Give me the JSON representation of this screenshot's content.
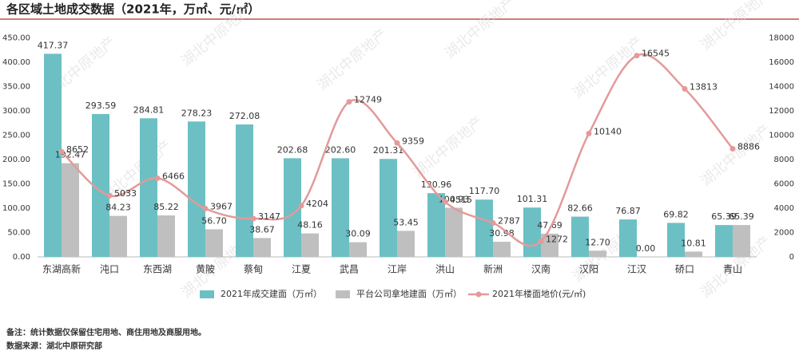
{
  "chart_data": {
    "type": "bar-line",
    "title": "各区域土地成交数据（2021年，万㎡、元/㎡）",
    "watermark": "湖北中原地产",
    "categories": [
      "东湖高新",
      "沌口",
      "东西湖",
      "黄陂",
      "蔡甸",
      "江夏",
      "武昌",
      "江岸",
      "洪山",
      "新洲",
      "汉南",
      "汉阳",
      "江汉",
      "硚口",
      "青山"
    ],
    "series": [
      {
        "name": "2021年成交建面（万㎡）",
        "color": "#6cc0c4",
        "type": "bar",
        "values": [
          417.37,
          293.59,
          284.81,
          278.23,
          272.08,
          202.68,
          202.6,
          201.31,
          130.96,
          117.7,
          101.31,
          82.66,
          76.87,
          69.82,
          65.39
        ],
        "value_labels": [
          "417.37",
          "293.59",
          "284.81",
          "278.23",
          "272.08",
          "202.68",
          "202.60",
          "201.31",
          "130.96",
          "117.70",
          "101.31",
          "82.66",
          "76.87",
          "69.82",
          "65.39"
        ]
      },
      {
        "name": "平台公司拿地建面（万㎡）",
        "color": "#bfbfbf",
        "type": "bar",
        "values": [
          192.47,
          84.23,
          85.22,
          56.7,
          38.67,
          48.16,
          30.09,
          53.45,
          100.93,
          30.98,
          47.69,
          12.7,
          0,
          10.81,
          65.39
        ],
        "value_labels": [
          "192.47",
          "84.23",
          "85.22",
          "56.70",
          "38.67",
          "48.16",
          "30.09",
          "53.45",
          "100.93",
          "30.98",
          "47.69",
          "12.70",
          "0.00",
          "10.81",
          "65.39"
        ]
      },
      {
        "name": "2021年楼面地价(元/㎡)",
        "color": "#e39a9a",
        "type": "line",
        "axis": "y2",
        "values": [
          8652,
          5033,
          6466,
          3967,
          3147,
          4204,
          12749,
          9359,
          4515,
          2787,
          1272,
          10140,
          16545,
          13813,
          8886
        ]
      }
    ],
    "ylim": [
      0,
      450
    ],
    "yticks": [
      {
        "value": 0,
        "label": "0.00"
      },
      {
        "value": 50,
        "label": "50.00"
      },
      {
        "value": 100,
        "label": "100.00"
      },
      {
        "value": 150,
        "label": "150.00"
      },
      {
        "value": 200,
        "label": "200.00"
      },
      {
        "value": 250,
        "label": "250.00"
      },
      {
        "value": 300,
        "label": "300.00"
      },
      {
        "value": 350,
        "label": "350.00"
      },
      {
        "value": 400,
        "label": "400.00"
      },
      {
        "value": 450,
        "label": "450.00"
      }
    ],
    "y2lim": [
      0,
      18000
    ],
    "y2ticks": [
      0,
      2000,
      4000,
      6000,
      8000,
      10000,
      12000,
      14000,
      16000,
      18000
    ],
    "legend": "bottom",
    "notes": [
      "备注：统计数据仅保留住宅用地、商住用地及商服用地。",
      "数据来源：湖北中原研究部"
    ]
  }
}
